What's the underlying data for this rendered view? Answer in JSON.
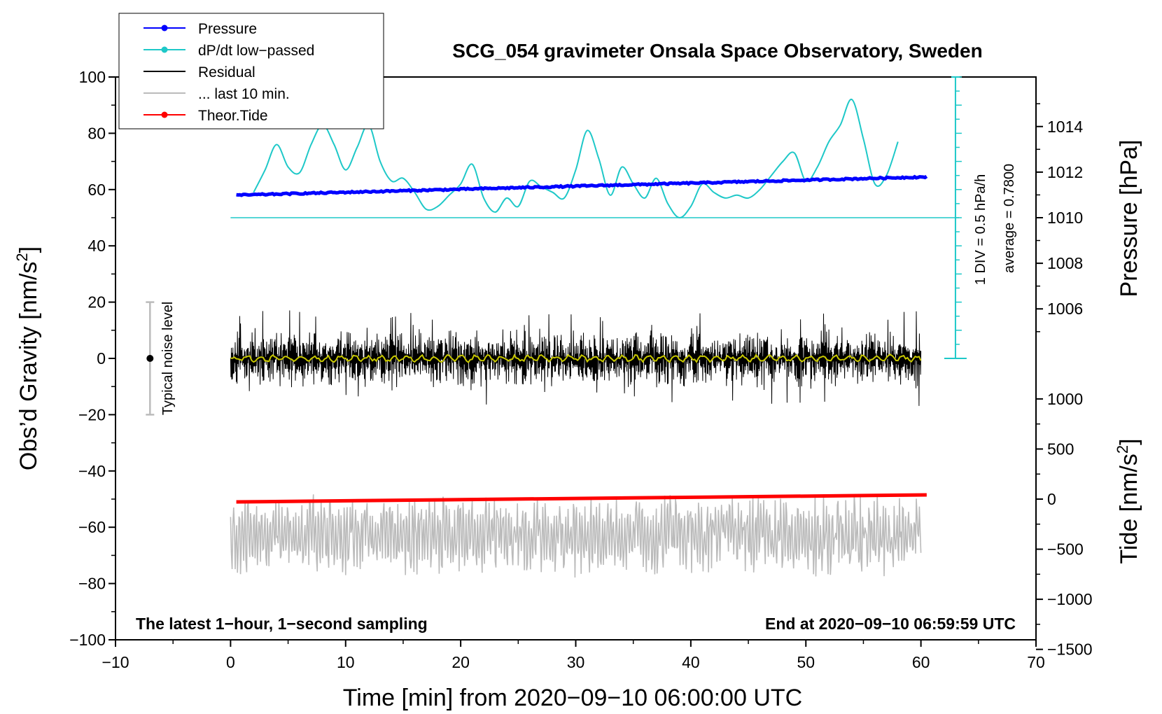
{
  "chart_data": {
    "type": "line",
    "title": "SCG_054 gravimeter Onsala Space Observatory, Sweden",
    "xlabel": "Time [min] from 2020−09−10 06:00:00 UTC",
    "ylabel_left": "Obs’d Gravity [nm/s",
    "ylabel_left_sup": "2",
    "ylabel_left_end": "]",
    "ylabel_right_pressure": "Pressure [hPa]",
    "ylabel_right_tide": "Tide [nm/s",
    "ylabel_right_tide_sup": "2",
    "ylabel_right_tide_end": "]",
    "xlim": [
      -10,
      70
    ],
    "ylim_left": [
      -100,
      100
    ],
    "x_ticks": [
      -10,
      0,
      10,
      20,
      30,
      40,
      50,
      60,
      70
    ],
    "x_tick_labels": [
      "−10",
      "0",
      "10",
      "20",
      "30",
      "40",
      "50",
      "60",
      "70"
    ],
    "y_ticks": [
      -100,
      -80,
      -60,
      -40,
      -20,
      0,
      20,
      40,
      60,
      80,
      100
    ],
    "y_tick_labels": [
      "−100",
      "−80",
      "−60",
      "−40",
      "−20",
      "0",
      "20",
      "40",
      "60",
      "80",
      "100"
    ],
    "pressure_ticks": [
      1006,
      1008,
      1010,
      1012,
      1014
    ],
    "pressure_ticks_labels": [
      "1006",
      "1008",
      "1010",
      "1012",
      "1014"
    ],
    "tide_ticks": [
      -1500,
      -1000,
      -500,
      0,
      500,
      1000
    ],
    "tide_tick_labels": [
      "−1500",
      "−1000",
      "−500",
      "0",
      "500",
      "1000"
    ],
    "legend": [
      {
        "label": "Pressure",
        "color": "#0000ff",
        "marker": true
      },
      {
        "label": "dP/dt low−passed",
        "color": "#1ec8c8",
        "marker": true
      },
      {
        "label": "Residual",
        "color": "#000000",
        "marker": false
      },
      {
        "label": "... last 10 min.",
        "color": "#bbbbbb",
        "marker": false
      },
      {
        "label": "Theor.Tide",
        "color": "#ff0000",
        "marker": true
      }
    ],
    "noise_level_label": "Typical noise level",
    "noise_level_range": [
      -20,
      20
    ],
    "noise_level_x": -7,
    "scale_label_1": "1 DIV = 0.5 hPa/h",
    "scale_label_2": "average = 0.7800",
    "note_left": "The latest 1−hour, 1−second sampling",
    "note_right": "End at 2020−09−10 06:59:59 UTC",
    "series": [
      {
        "name": "Pressure",
        "color": "#0000ff",
        "x": [
          0.5,
          60.5
        ],
        "y": [
          58,
          64.5
        ]
      },
      {
        "name": "dP/dt low-passed",
        "color": "#1ec8c8",
        "x": [
          2,
          3,
          4,
          5,
          6,
          7,
          8,
          9,
          10,
          11,
          12,
          13,
          14,
          15,
          16,
          17,
          18,
          19,
          20,
          21,
          22,
          23,
          24,
          25,
          26,
          27,
          28,
          29,
          30,
          31,
          32,
          33,
          34,
          35,
          36,
          37,
          38,
          39,
          40,
          41,
          42,
          43,
          44,
          45,
          46,
          47,
          48,
          49,
          50,
          51,
          52,
          53,
          54,
          55,
          56,
          57,
          58
        ],
        "y": [
          59,
          67,
          76,
          68,
          66,
          76,
          83,
          76,
          67,
          75,
          83,
          70,
          63,
          64,
          59,
          53,
          54,
          58,
          62,
          69,
          57,
          52,
          57,
          54,
          63,
          61,
          59,
          57,
          67,
          81,
          71,
          58,
          68,
          62,
          57,
          64,
          55,
          50,
          54,
          62,
          59,
          57,
          58,
          57,
          60,
          65,
          70,
          73,
          63,
          68,
          77,
          83,
          92,
          78,
          62,
          65,
          77
        ]
      },
      {
        "name": "Residual",
        "color": "#000000",
        "x": [
          0,
          60
        ],
        "y": [
          0,
          0
        ],
        "noise_amplitude": 15
      },
      {
        "name": "Residual smoothed",
        "color": "#c8c800",
        "x": [
          0,
          60
        ],
        "y": [
          0,
          0
        ]
      },
      {
        "name": "Residual last 10 min.",
        "color": "#bbbbbb",
        "x": [
          0,
          60
        ],
        "y": [
          -63,
          -63
        ],
        "noise_amplitude": 15
      },
      {
        "name": "Theor.Tide",
        "color": "#ff0000",
        "x": [
          0.5,
          60.5
        ],
        "y": [
          -51,
          -48.5
        ]
      }
    ]
  }
}
